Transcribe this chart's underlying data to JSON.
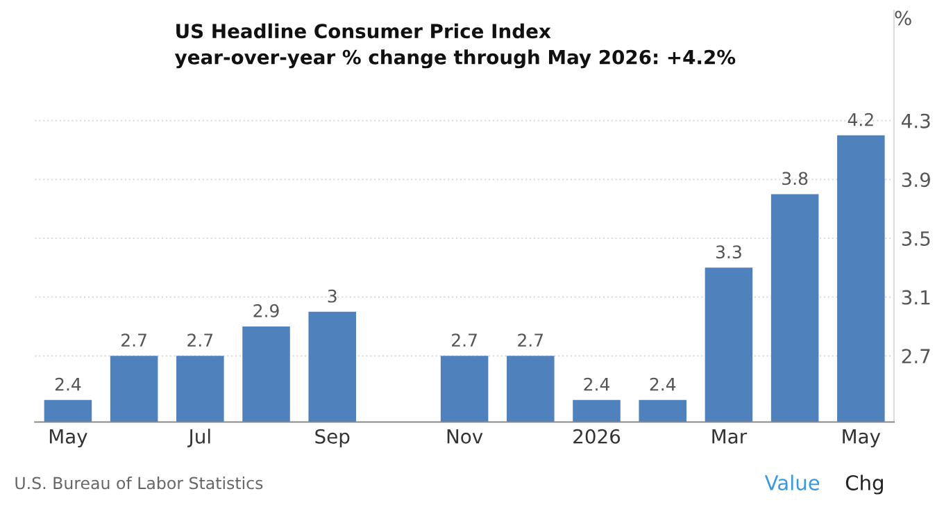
{
  "chart_data": {
    "type": "bar",
    "title": "US Headline Consumer Price Index",
    "subtitle": "year-over-year % change through May 2026: +4.2%",
    "ylabel": "%",
    "categories": [
      "May",
      null,
      "Jul",
      null,
      "Sep",
      null,
      "Nov",
      null,
      "2026",
      null,
      "Mar",
      null,
      "May"
    ],
    "values": [
      2.4,
      2.7,
      2.7,
      2.9,
      3,
      null,
      2.7,
      2.7,
      2.4,
      2.4,
      3.3,
      3.8,
      4.2
    ],
    "color": "#4f81bd",
    "ylim": [
      2.25,
      5.05
    ],
    "yticks": [
      2.7,
      3.1,
      3.5,
      3.9,
      4.3
    ],
    "grid": "y",
    "data_labels": true,
    "annotations": [
      "U.S. Bureau of Labor Statistics",
      "Value",
      "Chg"
    ]
  }
}
